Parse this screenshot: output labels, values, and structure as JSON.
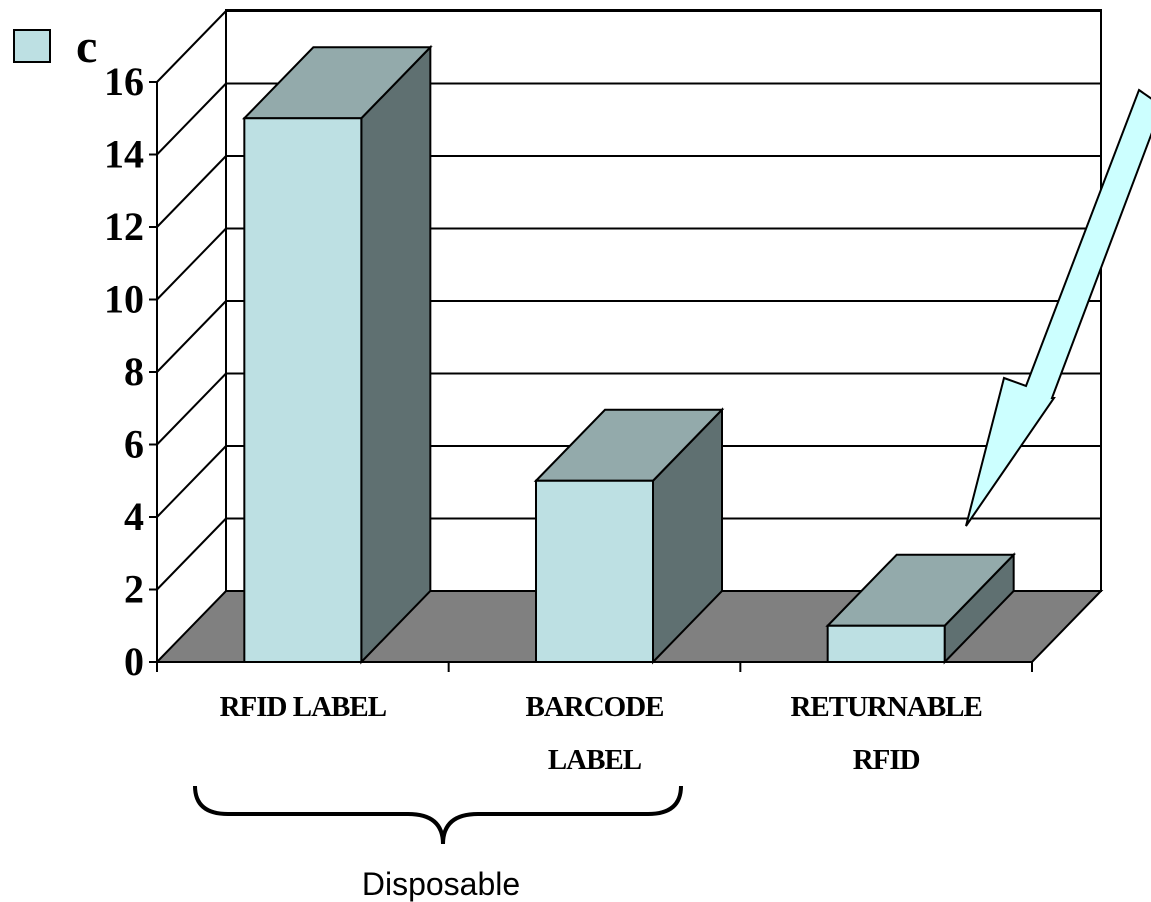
{
  "chart_data": {
    "type": "bar",
    "categories": [
      [
        "RFID LABEL"
      ],
      [
        "BARCODE",
        "LABEL"
      ],
      [
        "RETURNABLE",
        "RFID"
      ]
    ],
    "series": [
      {
        "name": "c",
        "values": [
          15,
          5,
          1
        ]
      }
    ],
    "yticks": [
      "0",
      "2",
      "4",
      "6",
      "8",
      "10",
      "12",
      "14",
      "16"
    ],
    "ylim": [
      0,
      16
    ],
    "grid": true,
    "legend": {
      "position": "top-left",
      "label": "c"
    },
    "group_annotation": {
      "label": "Disposable",
      "spans": [
        "RFID LABEL",
        "BARCODE LABEL"
      ]
    },
    "arrow_annotation": {
      "points_to": "RETURNABLE RFID"
    }
  },
  "colors": {
    "bar_front": "#bde0e3",
    "bar_top": "#93aaab",
    "bar_side": "#5f7071",
    "floor": "#808080",
    "arrow_fill": "#ccffff"
  }
}
